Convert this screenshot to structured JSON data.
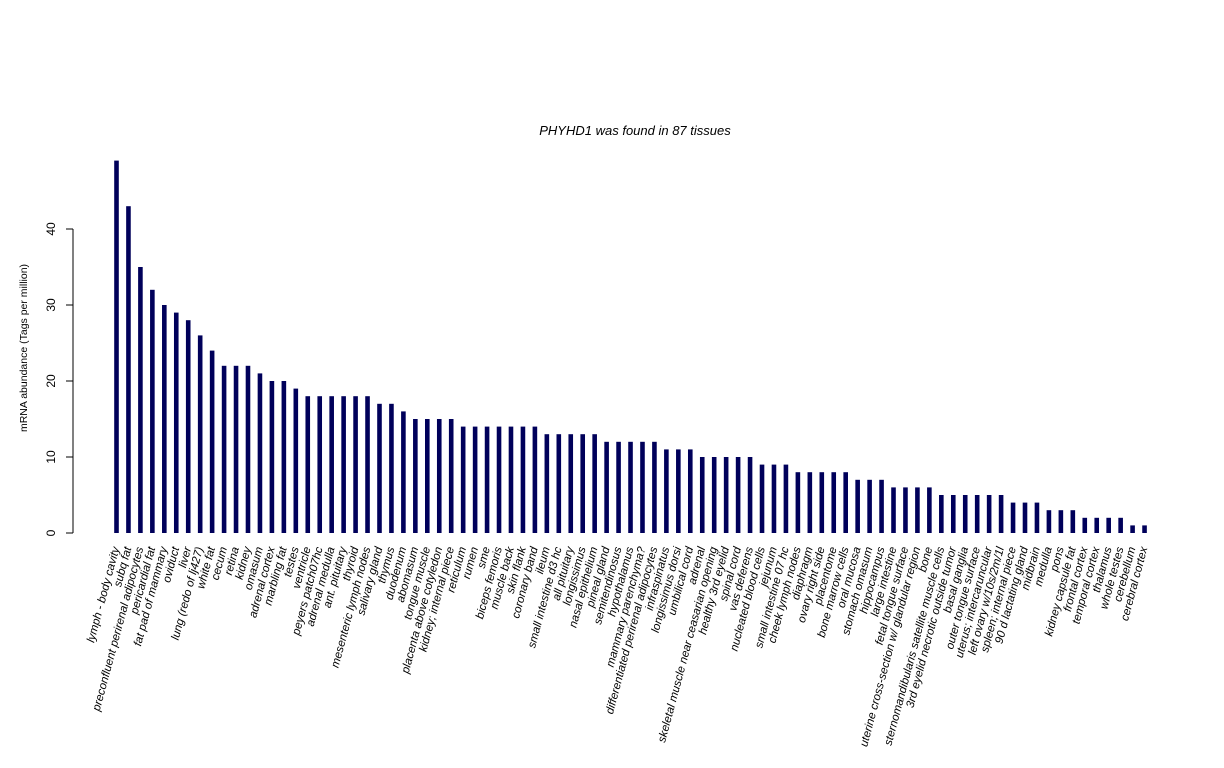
{
  "chart_data": {
    "type": "bar",
    "title": "PHYHD1  was found in  87  tissues",
    "xlabel": "",
    "ylabel": "mRNA abundance (Tags per million)",
    "ylim": [
      0,
      49
    ],
    "yticks": [
      0,
      10,
      20,
      30,
      40
    ],
    "grid": false,
    "colors": {
      "bar": "#00005a",
      "axis": "#000000"
    },
    "categories": [
      "lymph - body cavity",
      "subq fat",
      "preconfluent perirenal adipocytes",
      "pericardial fat",
      "fat pad of mammary",
      "oviduct",
      "liver",
      "lung (redo of lj427)",
      "white fat",
      "cecum",
      "retina",
      "kidney",
      "omasum",
      "adrenal cortex",
      "marbling fat",
      "testes",
      "ventricle",
      "peyers patch07hc",
      "adrenal medulla",
      "ant. pituitary",
      "thyroid",
      "mesenteric lymph nodes",
      "salivary gland",
      "thymus",
      "duodenum",
      "abomasum",
      "tongue muscle",
      "placenta above cotyledon",
      "kidney; internal piece",
      "reticulum",
      "rumen",
      "sme",
      "biceps femoris",
      "muscle back",
      "skin flank",
      "coronary band",
      "ileum",
      "small intestine d3 hc",
      "all pituitary",
      "longissimus",
      "nasal epithelium",
      "pineal gland",
      "semitendinosus",
      "hypothalamus",
      "mammary parenchyma?",
      "differentiated perirenal adipocytes",
      "infraspinatus",
      "longissimus dorsi",
      "umbilical cord",
      "adrenal",
      "skeletal muscle near ceasarian opening",
      "healthy 3rd eyelid",
      "spinal cord",
      "vas deferens",
      "nucleated blood cells",
      "jejunum",
      "small intestine 07 hc",
      "cheek lymph nodes",
      "diaphragm",
      "ovary right side",
      "placentome",
      "bone marrow cells",
      "oral mucosa",
      "stomach omasum",
      "hippocampus",
      "large intestine",
      "fetal tongue surface",
      "uterine cross-section w/ glandular region",
      "bone",
      "sternomandibularis satellite muscle cells",
      "3rd eyelid necrotic outside tumor",
      "basal ganglia",
      "outer tongue surface",
      "uterus; intercaruncular",
      "left ovary w/10s/2m/1l",
      "spleen; internal piece",
      "90 d lactating gland",
      "midbrain",
      "medulla",
      "pons",
      "kidney capsule fat",
      "frontal cortex",
      "temporal cortex",
      "thalamus",
      "whole testes",
      "cerebellum",
      "cerebral cortex"
    ],
    "values": [
      49,
      43,
      35,
      32,
      30,
      29,
      28,
      26,
      24,
      22,
      22,
      22,
      21,
      20,
      20,
      19,
      18,
      18,
      18,
      18,
      18,
      18,
      17,
      17,
      16,
      15,
      15,
      15,
      15,
      14,
      14,
      14,
      14,
      14,
      14,
      14,
      13,
      13,
      13,
      13,
      13,
      12,
      12,
      12,
      12,
      12,
      11,
      11,
      11,
      10,
      10,
      10,
      10,
      10,
      9,
      9,
      9,
      8,
      8,
      8,
      8,
      8,
      7,
      7,
      7,
      6,
      6,
      6,
      6,
      5,
      5,
      5,
      5,
      5,
      5,
      4,
      4,
      4,
      3,
      3,
      3,
      2,
      2,
      2,
      2,
      1,
      1
    ]
  }
}
